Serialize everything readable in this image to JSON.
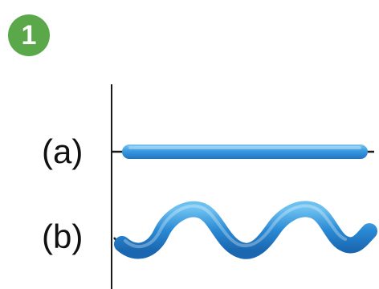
{
  "badge": {
    "number": "1",
    "color": "#5aa84a"
  },
  "labels": {
    "a": "(a)",
    "b": "(b)"
  },
  "colors": {
    "rod": "#2e8fd6",
    "rod_light": "#59b3ec",
    "wave": "#2a86cf",
    "wave_light": "#62b8ee",
    "axis": "#1a1a1a"
  }
}
